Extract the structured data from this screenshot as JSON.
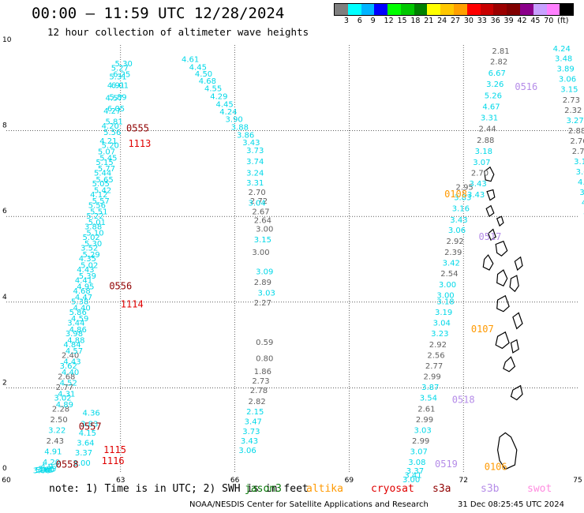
{
  "title": "00:00 – 11:59 UTC 12/28/2024",
  "subtitle": "12 hour collection of altimeter wave heights",
  "colorbar": {
    "colors": [
      "#7f7f7f",
      "#00ffff",
      "#00b4ff",
      "#0000ff",
      "#00ff00",
      "#00c800",
      "#008000",
      "#ffff00",
      "#ffc800",
      "#ffa000",
      "#ff0000",
      "#c80000",
      "#9b0000",
      "#800000",
      "#8b008b",
      "#c8a0ff",
      "#ff80ff",
      "#000000"
    ],
    "labels": [
      "3",
      "6",
      "9",
      "12",
      "15",
      "18",
      "21",
      "24",
      "27",
      "30",
      "33",
      "36",
      "39",
      "42",
      "45",
      "70",
      "(ft)"
    ]
  },
  "axes": {
    "x_ticks": [
      "60",
      "63",
      "66",
      "69",
      "72",
      "75"
    ],
    "y_ticks": [
      "0",
      "2",
      "4",
      "6",
      "8",
      "10"
    ],
    "xlim": [
      60,
      75
    ],
    "ylim": [
      0,
      10
    ]
  },
  "note": "note: 1) Time is in UTC; 2) SWH is in feet",
  "legend": [
    {
      "label": "jason3",
      "color": "#0a7a0a"
    },
    {
      "label": "altika",
      "color": "#ff9900"
    },
    {
      "label": "cryosat",
      "color": "#e00000"
    },
    {
      "label": "s3a",
      "color": "#900000"
    },
    {
      "label": "s3b",
      "color": "#b58ce8"
    },
    {
      "label": "swot",
      "color": "#ff8ce0"
    }
  ],
  "credit": "NOAA/NESDIS Center for Satellite Applications and Research",
  "stamp": "31 Dec 08:25:45 UTC 2024",
  "chart_data": {
    "type": "scatter",
    "colors": {
      "c": "#00d8e8",
      "g": "#606060",
      "s3a": "#900000",
      "cry": "#e00000",
      "alt": "#ff9900",
      "s3b": "#b58ce8"
    },
    "tracks": [
      {
        "kind": "c",
        "points": [
          [
            64.6,
            9.6
          ],
          [
            64.8,
            9.42
          ],
          [
            64.95,
            9.26
          ],
          [
            65.05,
            9.1
          ],
          [
            65.2,
            8.92
          ],
          [
            65.35,
            8.74
          ],
          [
            65.5,
            8.55
          ],
          [
            65.6,
            8.38
          ],
          [
            65.75,
            8.2
          ],
          [
            65.9,
            8.02
          ],
          [
            66.05,
            7.84
          ],
          [
            66.2,
            7.66
          ]
        ],
        "values": [
          "4.61",
          "4.45",
          "4.50",
          "4.68",
          "4.55",
          "4.29",
          "4.45",
          "4.24",
          "3.90",
          "3.88",
          "3.86",
          "3.43"
        ]
      },
      {
        "kind": "c",
        "points": [
          [
            66.3,
            7.48
          ],
          [
            66.3,
            7.22
          ],
          [
            66.3,
            6.95
          ],
          [
            66.3,
            6.72
          ]
        ],
        "values": [
          "3.73",
          "3.74",
          "3.24",
          "3.31"
        ]
      },
      {
        "kind": "g",
        "points": [
          [
            66.35,
            6.5
          ],
          [
            66.4,
            6.3
          ],
          [
            66.45,
            6.05
          ],
          [
            66.5,
            5.85
          ],
          [
            66.55,
            5.64
          ]
        ],
        "values": [
          "2.70",
          "2.72",
          "2.67",
          "2.64",
          "3.00"
        ]
      },
      {
        "kind": "c",
        "points": [
          [
            66.35,
            6.25
          ],
          [
            66.5,
            5.4
          ],
          [
            66.55,
            4.65
          ],
          [
            66.6,
            4.15
          ]
        ],
        "values": [
          "3.04",
          "3.15",
          "3.09",
          "3.03"
        ]
      },
      {
        "kind": "g",
        "points": [
          [
            66.45,
            5.1
          ],
          [
            66.5,
            4.4
          ],
          [
            66.5,
            3.92
          ],
          [
            66.55,
            3.0
          ],
          [
            66.55,
            2.62
          ],
          [
            66.5,
            2.32
          ],
          [
            66.45,
            2.1
          ],
          [
            66.4,
            1.88
          ],
          [
            66.35,
            1.62
          ]
        ],
        "values": [
          "3.00",
          "2.89",
          "2.27",
          "0.59",
          "0.80",
          "1.86",
          "2.73",
          "2.78",
          "2.82"
        ]
      },
      {
        "kind": "c",
        "points": [
          [
            66.3,
            1.38
          ],
          [
            66.25,
            1.15
          ],
          [
            66.2,
            0.92
          ],
          [
            66.15,
            0.7
          ]
        ],
        "values": [
          "2.15",
          "3.47",
          "3.73",
          "3.43"
        ]
      },
      {
        "kind": "c",
        "points": [
          [
            66.1,
            0.48
          ]
        ],
        "values": [
          "3.06"
        ]
      }
    ],
    "labels": [
      {
        "t": "0555",
        "kind": "s3a",
        "p": [
          63.15,
          7.98
        ]
      },
      {
        "t": "1113",
        "kind": "cry",
        "p": [
          63.2,
          7.62
        ]
      },
      {
        "t": "0556",
        "kind": "s3a",
        "p": [
          62.7,
          4.3
        ]
      },
      {
        "t": "1114",
        "kind": "cry",
        "p": [
          63.0,
          3.88
        ]
      },
      {
        "t": "0557",
        "kind": "s3a",
        "p": [
          61.9,
          1.02
        ]
      },
      {
        "t": "1115",
        "kind": "cry",
        "p": [
          62.55,
          0.48
        ]
      },
      {
        "t": "1116",
        "kind": "cry",
        "p": [
          62.5,
          0.22
        ]
      },
      {
        "t": "0558",
        "kind": "s3a",
        "p": [
          61.3,
          0.14
        ]
      },
      {
        "t": "0108",
        "kind": "alt",
        "p": [
          71.5,
          6.45
        ]
      },
      {
        "t": "0107",
        "kind": "alt",
        "p": [
          72.2,
          3.3
        ]
      },
      {
        "t": "0106",
        "kind": "alt",
        "p": [
          72.55,
          0.08
        ]
      },
      {
        "t": "0516",
        "kind": "s3b",
        "p": [
          73.35,
          8.95
        ]
      },
      {
        "t": "0517",
        "kind": "s3b",
        "p": [
          72.4,
          5.45
        ]
      },
      {
        "t": "0518",
        "kind": "s3b",
        "p": [
          71.7,
          1.65
        ]
      },
      {
        "t": "0519",
        "kind": "s3b",
        "p": [
          71.25,
          0.15
        ]
      }
    ],
    "series": [
      {
        "name": "trackA",
        "kind": "mix",
        "x": [
          62.75,
          62.7,
          62.65,
          62.6,
          62.55,
          62.5,
          62.45,
          62.4,
          62.35,
          62.3,
          62.25,
          62.2,
          62.15,
          62.1,
          62.05,
          62.0,
          61.95,
          61.9,
          61.85,
          61.8,
          61.75,
          61.7,
          61.65,
          61.6,
          61.55,
          61.5,
          61.45,
          61.4,
          61.35,
          61.3,
          61.25,
          61.2,
          61.15,
          61.1,
          61.05,
          61.0,
          60.95,
          60.9,
          60.85,
          60.8,
          60.75,
          60.7
        ],
        "y": [
          9.4,
          9.2,
          9.0,
          8.7,
          8.4,
          8.05,
          7.7,
          7.45,
          7.2,
          6.95,
          6.7,
          6.45,
          6.2,
          5.95,
          5.7,
          5.45,
          5.2,
          4.95,
          4.7,
          4.45,
          4.2,
          3.95,
          3.7,
          3.45,
          3.2,
          2.95,
          2.7,
          2.45,
          2.2,
          1.95,
          1.7,
          1.45,
          1.2,
          0.95,
          0.7,
          0.45,
          0.2,
          0.1,
          0.05,
          0.03,
          0.02,
          0.01
        ],
        "labels": [
          "5.27",
          "5.31",
          "4.91",
          "4.57",
          "4.27",
          "4.20",
          "4.21",
          "5.07",
          "5.15",
          "5.44",
          "5.05",
          "4.12",
          "5.56",
          "5.22",
          "3.88",
          "5.02",
          "3.52",
          "4.35",
          "4.43",
          "4.41",
          "4.68",
          "5.38",
          "5.86",
          "3.44",
          "3.98",
          "4.84",
          "2.40",
          "3.62",
          "2.68",
          "2.77",
          "3.02",
          "2.28",
          "2.50",
          "3.22",
          "2.43",
          "4.91",
          "4.20",
          "4.97",
          "5.65",
          "3.00",
          "5.40",
          "3.00"
        ]
      },
      {
        "name": "trackB",
        "kind": "mix",
        "x": [
          62.85,
          62.8,
          62.75,
          62.7,
          62.65,
          62.6,
          62.55,
          62.5,
          62.45,
          62.4,
          62.35,
          62.3,
          62.25,
          62.2,
          62.15,
          62.1,
          62.05,
          62.0,
          61.95,
          61.9,
          61.85,
          61.8,
          61.75,
          61.7,
          61.65,
          61.6,
          61.55,
          61.5,
          61.45,
          61.4,
          61.35,
          61.3
        ],
        "y": [
          9.5,
          9.25,
          9.0,
          8.72,
          8.45,
          8.15,
          7.9,
          7.6,
          7.3,
          7.05,
          6.8,
          6.55,
          6.3,
          6.05,
          5.8,
          5.55,
          5.3,
          5.05,
          4.8,
          4.55,
          4.3,
          4.05,
          3.8,
          3.55,
          3.3,
          3.05,
          2.8,
          2.55,
          2.3,
          2.05,
          1.8,
          1.55
        ],
        "labels": [
          "5.30",
          "6.25",
          "6.01",
          "5.89",
          "6.05",
          "5.81",
          "5.56",
          "5.20",
          "5.45",
          "5.77",
          "5.65",
          "5.42",
          "5.57",
          "5.51",
          "5.01",
          "5.10",
          "5.30",
          "5.29",
          "5.02",
          "5.39",
          "4.95",
          "4.47",
          "4.40",
          "4.59",
          "4.86",
          "4.88",
          "4.57",
          "4.43",
          "4.40",
          "4.52",
          "4.31",
          "4.89"
        ]
      },
      {
        "name": "trackC",
        "kind": "mix",
        "x": [
          62.0,
          61.95,
          61.9,
          61.85,
          61.8,
          61.75
        ],
        "y": [
          1.35,
          1.1,
          0.88,
          0.65,
          0.42,
          0.18
        ],
        "labels": [
          "4.36",
          "3.83",
          "4.15",
          "3.64",
          "3.37",
          "3.00"
        ]
      },
      {
        "name": "trackD",
        "kind": "mix",
        "x": [
          71.8,
          71.75,
          71.7,
          71.65,
          71.6,
          71.55,
          71.5,
          71.45,
          71.4,
          71.35,
          71.3
        ],
        "y": [
          6.62,
          6.38,
          6.12,
          5.86,
          5.62,
          5.36,
          5.1,
          4.85,
          4.6,
          4.35,
          4.1
        ],
        "labels": [
          "2.95",
          "3.83",
          "3.16",
          "3.43",
          "3.06",
          "2.92",
          "2.39",
          "3.42",
          "2.54",
          "3.00",
          "3.00"
        ]
      },
      {
        "name": "trackE",
        "kind": "mix",
        "x": [
          71.3,
          71.25,
          71.2,
          71.15,
          71.1,
          71.05,
          71.0,
          70.95,
          70.9,
          70.85,
          70.8,
          70.75,
          70.7,
          70.65,
          70.6,
          70.55,
          70.5,
          70.45,
          70.4
        ],
        "y": [
          3.95,
          3.7,
          3.45,
          3.2,
          2.95,
          2.7,
          2.45,
          2.2,
          1.95,
          1.7,
          1.45,
          1.2,
          0.95,
          0.7,
          0.45,
          0.2,
          0.0,
          -0.1,
          -0.2
        ],
        "labels": [
          "3.18",
          "3.19",
          "3.04",
          "3.23",
          "2.92",
          "2.56",
          "2.77",
          "2.99",
          "3.87",
          "3.54",
          "2.61",
          "2.99",
          "3.03",
          "2.99",
          "3.07",
          "3.08",
          "3.37",
          "3.41",
          "3.00"
        ]
      },
      {
        "name": "trackF",
        "kind": "mix",
        "x": [
          72.75,
          72.7,
          72.65,
          72.6,
          72.55,
          72.5,
          72.45,
          72.4,
          72.35,
          72.3,
          72.25,
          72.2,
          72.15,
          72.1
        ],
        "y": [
          9.8,
          9.55,
          9.28,
          9.02,
          8.76,
          8.5,
          8.24,
          7.98,
          7.72,
          7.46,
          7.2,
          6.95,
          6.7,
          6.45
        ],
        "labels": [
          "2.81",
          "2.82",
          "6.67",
          "3.26",
          "5.26",
          "4.67",
          "3.31",
          "2.44",
          "2.88",
          "3.18",
          "3.07",
          "2.70",
          "3.43",
          "3.43"
        ]
      },
      {
        "name": "trackG",
        "kind": "mix",
        "x": [
          74.35,
          74.4,
          74.45,
          74.5,
          74.55,
          74.6,
          74.65,
          74.7,
          74.75,
          74.8,
          74.85,
          74.9,
          74.95,
          75.0,
          75.05,
          75.1,
          75.15,
          75.2
        ],
        "y": [
          9.85,
          9.62,
          9.38,
          9.14,
          8.9,
          8.66,
          8.42,
          8.18,
          7.94,
          7.7,
          7.46,
          7.22,
          6.98,
          6.74,
          6.5,
          6.26,
          6.02,
          5.78
        ],
        "labels": [
          "4.24",
          "3.48",
          "3.89",
          "3.06",
          "3.15",
          "2.73",
          "2.32",
          "3.27",
          "2.88",
          "2.76",
          "2.76",
          "3.13",
          "3.62",
          "4.13",
          "3.41",
          "4.9",
          "4.22",
          "4.0"
        ]
      }
    ],
    "land": [
      [
        [
          72.55,
          7.05
        ],
        [
          72.7,
          7.15
        ],
        [
          72.8,
          6.98
        ],
        [
          72.72,
          6.82
        ],
        [
          72.58,
          6.85
        ]
      ],
      [
        [
          72.62,
          6.58
        ],
        [
          72.78,
          6.62
        ],
        [
          72.82,
          6.45
        ],
        [
          72.7,
          6.38
        ]
      ],
      [
        [
          72.6,
          6.18
        ],
        [
          72.72,
          6.25
        ],
        [
          72.8,
          6.08
        ],
        [
          72.68,
          6.0
        ]
      ],
      [
        [
          72.88,
          5.95
        ],
        [
          73.0,
          6.0
        ],
        [
          73.05,
          5.85
        ],
        [
          72.95,
          5.78
        ]
      ],
      [
        [
          72.65,
          5.6
        ],
        [
          72.78,
          5.7
        ],
        [
          72.85,
          5.52
        ],
        [
          72.72,
          5.45
        ]
      ],
      [
        [
          72.85,
          5.35
        ],
        [
          73.05,
          5.42
        ],
        [
          73.15,
          5.2
        ],
        [
          73.0,
          5.08
        ],
        [
          72.88,
          5.15
        ]
      ],
      [
        [
          72.55,
          5.0
        ],
        [
          72.65,
          5.1
        ],
        [
          72.78,
          4.9
        ],
        [
          72.68,
          4.75
        ],
        [
          72.52,
          4.82
        ]
      ],
      [
        [
          72.9,
          4.65
        ],
        [
          73.05,
          4.75
        ],
        [
          73.15,
          4.55
        ],
        [
          73.05,
          4.38
        ],
        [
          72.88,
          4.45
        ]
      ],
      [
        [
          73.35,
          4.95
        ],
        [
          73.5,
          5.05
        ],
        [
          73.55,
          4.85
        ],
        [
          73.42,
          4.75
        ]
      ],
      [
        [
          73.25,
          4.55
        ],
        [
          73.4,
          4.62
        ],
        [
          73.45,
          4.38
        ],
        [
          73.35,
          4.25
        ],
        [
          73.22,
          4.35
        ]
      ],
      [
        [
          72.9,
          4.05
        ],
        [
          73.1,
          4.15
        ],
        [
          73.2,
          3.9
        ],
        [
          73.05,
          3.78
        ],
        [
          72.88,
          3.85
        ]
      ],
      [
        [
          73.3,
          3.65
        ],
        [
          73.45,
          3.75
        ],
        [
          73.55,
          3.5
        ],
        [
          73.4,
          3.38
        ]
      ],
      [
        [
          72.9,
          3.2
        ],
        [
          73.1,
          3.3
        ],
        [
          73.2,
          3.05
        ],
        [
          73.02,
          2.92
        ],
        [
          72.85,
          3.0
        ]
      ],
      [
        [
          73.25,
          3.05
        ],
        [
          73.4,
          3.12
        ],
        [
          73.45,
          2.9
        ],
        [
          73.3,
          2.82
        ]
      ],
      [
        [
          73.1,
          2.6
        ],
        [
          73.25,
          2.72
        ],
        [
          73.35,
          2.5
        ],
        [
          73.2,
          2.38
        ],
        [
          73.05,
          2.45
        ]
      ],
      [
        [
          73.3,
          1.95
        ],
        [
          73.5,
          2.05
        ],
        [
          73.55,
          1.85
        ],
        [
          73.4,
          1.72
        ],
        [
          73.25,
          1.8
        ]
      ],
      [
        [
          72.95,
          0.85
        ],
        [
          73.1,
          0.95
        ],
        [
          73.25,
          0.85
        ],
        [
          73.4,
          0.55
        ],
        [
          73.35,
          0.2
        ],
        [
          73.1,
          0.1
        ],
        [
          72.95,
          0.3
        ],
        [
          72.9,
          0.55
        ]
      ]
    ]
  }
}
